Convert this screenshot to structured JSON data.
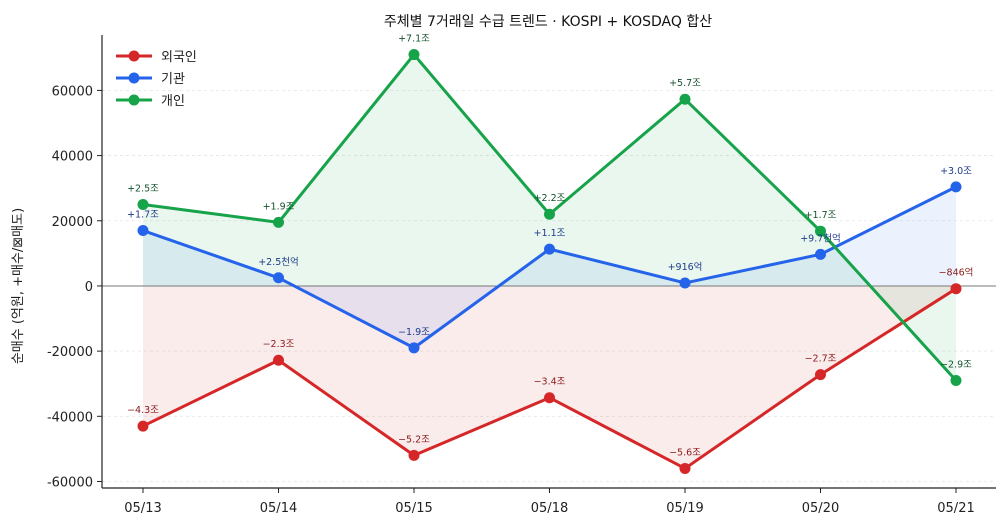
{
  "chart_data": {
    "type": "line",
    "title": "주체별 7거래일 수급 트렌드 · KOSPI + KOSDAQ 합산",
    "ylabel": "순매수 (억원, +매수/⊠매도)",
    "xlabel": "",
    "categories": [
      "05/13",
      "05/14",
      "05/15",
      "05/18",
      "05/19",
      "05/20",
      "05/21"
    ],
    "ylim": [
      -62000,
      77000
    ],
    "yticks": [
      -60000,
      -40000,
      -20000,
      0,
      20000,
      40000,
      60000
    ],
    "grid": "horizontal dashed",
    "legend_position": "top-left",
    "series": [
      {
        "name": "외국인",
        "color": "#d62728",
        "values": [
          -43000,
          -22800,
          -52000,
          -34300,
          -56000,
          -27200,
          -846
        ],
        "labels": [
          "−4.3조",
          "−2.3조",
          "−5.2조",
          "−3.4조",
          "−5.6조",
          "−2.7조",
          "−846억"
        ],
        "label_color": "#8b1a1a"
      },
      {
        "name": "기관",
        "color": "#2563eb",
        "values": [
          17000,
          2500,
          -19000,
          11300,
          916,
          9700,
          30400
        ],
        "labels": [
          "+1.7조",
          "+2.5천억",
          "−1.9조",
          "+1.1조",
          "+916억",
          "+9.7천억",
          "+3.0조"
        ],
        "label_color": "#1e3a8a"
      },
      {
        "name": "개인",
        "color": "#16a34a",
        "values": [
          25000,
          19500,
          71000,
          22000,
          57300,
          16800,
          -29000
        ],
        "labels": [
          "+2.5조",
          "+1.9조",
          "+7.1조",
          "+2.2조",
          "+5.7조",
          "+1.7조",
          "−2.9조"
        ],
        "label_color": "#14532d"
      }
    ]
  }
}
